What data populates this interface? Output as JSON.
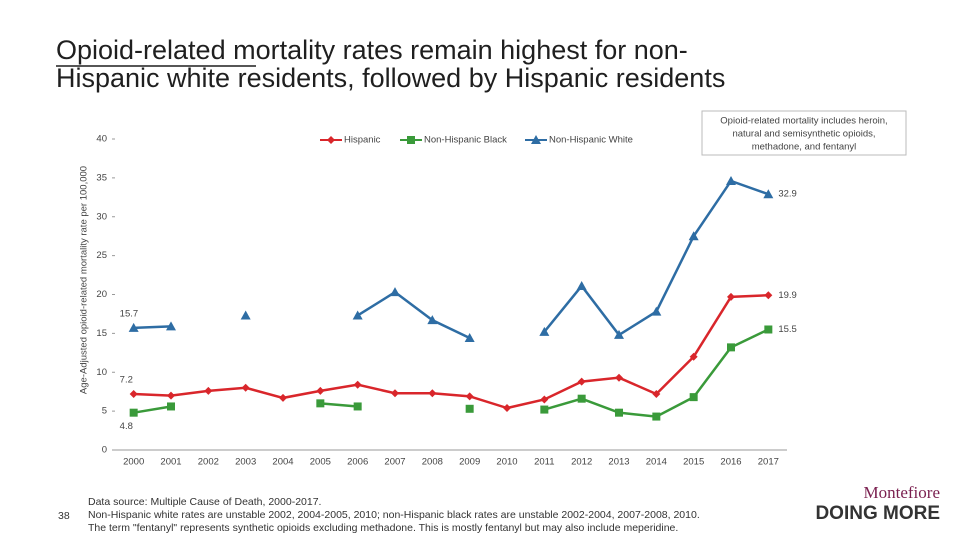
{
  "chart_data": {
    "type": "line",
    "title": [
      "Opioid-related mortality rates remain highest for non-",
      "Hispanic white residents, followed by Hispanic residents"
    ],
    "y_label": "Age-Adjusted opioid-related mortality rate per 100,000",
    "note": [
      "Opioid-related mortality includes heroin,",
      "natural and semisynthetic opioids,",
      "methadone, and fentanyl"
    ],
    "categories": [
      "2000",
      "2001",
      "2002",
      "2003",
      "2004",
      "2005",
      "2006",
      "2007",
      "2008",
      "2009",
      "2010",
      "2011",
      "2012",
      "2013",
      "2014",
      "2015",
      "2016",
      "2017"
    ],
    "ylim": [
      0,
      40
    ],
    "yticks": [
      0,
      5,
      10,
      15,
      20,
      25,
      30,
      35,
      40
    ],
    "series": [
      {
        "name": "Hispanic",
        "color": "#d9262b",
        "marker": "diamond",
        "values": [
          7.2,
          7.0,
          7.6,
          8.0,
          6.7,
          7.6,
          8.4,
          7.3,
          7.3,
          6.9,
          5.4,
          6.5,
          8.8,
          9.3,
          7.2,
          12.0,
          19.7,
          19.9
        ],
        "value_labels": [
          "7.2",
          null,
          null,
          null,
          null,
          null,
          null,
          null,
          null,
          null,
          null,
          null,
          null,
          null,
          null,
          null,
          null,
          "19.9"
        ]
      },
      {
        "name": "Non-Hispanic Black",
        "color": "#3a9a3a",
        "marker": "square",
        "values": [
          4.8,
          5.6,
          null,
          null,
          null,
          6.0,
          5.6,
          null,
          null,
          5.3,
          null,
          5.2,
          6.6,
          4.8,
          4.3,
          6.8,
          13.2,
          15.5
        ],
        "value_labels": [
          "4.8",
          null,
          null,
          null,
          null,
          null,
          null,
          null,
          null,
          null,
          null,
          null,
          null,
          null,
          null,
          null,
          null,
          "15.5"
        ]
      },
      {
        "name": "Non-Hispanic White",
        "color": "#2e6da4",
        "marker": "triangle",
        "values": [
          15.7,
          15.9,
          null,
          17.3,
          null,
          null,
          17.3,
          20.3,
          16.7,
          14.4,
          null,
          15.2,
          21.1,
          14.8,
          17.8,
          27.5,
          34.6,
          32.9
        ],
        "value_labels": [
          "15.7",
          null,
          null,
          null,
          null,
          null,
          null,
          null,
          null,
          null,
          null,
          null,
          null,
          null,
          null,
          null,
          null,
          "32.9"
        ]
      }
    ]
  },
  "footer": {
    "page_number": "38",
    "source": [
      "Data source: Multiple Cause of Death, 2000-2017.",
      "Non-Hispanic white rates are unstable 2002, 2004-2005, 2010; non-Hispanic black rates are unstable 2002-2004, 2007-2008, 2010.",
      "The term \"fentanyl\" represents synthetic opioids excluding methadone.  This is mostly fentanyl but may also include meperidine."
    ],
    "logo_top": "Montefiore",
    "logo_bottom": "DOING MORE"
  }
}
